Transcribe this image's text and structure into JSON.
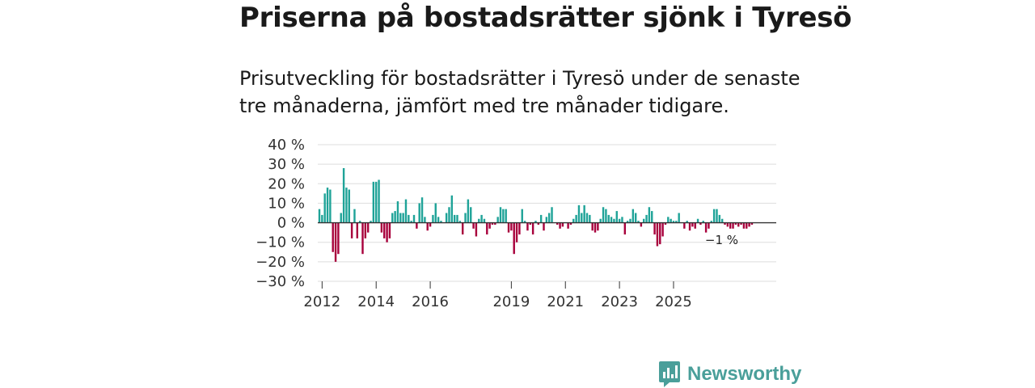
{
  "header": {
    "title": "Priserna på bostadsrätter sjönk i Tyresö",
    "subtitle": "Prisutveckling för bostadsrätter i Tyresö under de senaste tre månaderna, jämfört med tre månader tidigare."
  },
  "brand": {
    "name": "Newsworthy",
    "icon": "newsworthy-logo-icon",
    "color": "#4a9f9a"
  },
  "chart_data": {
    "type": "bar",
    "title": "Priserna på bostadsrätter sjönk i Tyresö",
    "xlabel": "",
    "ylabel": "",
    "ylim": [
      -30,
      40
    ],
    "yticks": [
      40,
      30,
      20,
      10,
      0,
      -10,
      -20,
      -30
    ],
    "ytick_labels": [
      "40 %",
      "30 %",
      "20 %",
      "10 %",
      "0 %",
      "−10 %",
      "−20 %",
      "−30 %"
    ],
    "x_start_month": "2011-12",
    "xlim_months": [
      0,
      166
    ],
    "xticks": [
      {
        "label": "2012",
        "month_index": 1
      },
      {
        "label": "2014",
        "month_index": 21
      },
      {
        "label": "2016",
        "month_index": 41
      },
      {
        "label": "2019",
        "month_index": 71
      },
      {
        "label": "2021",
        "month_index": 91
      },
      {
        "label": "2023",
        "month_index": 111
      },
      {
        "label": "2025",
        "month_index": 131
      }
    ],
    "colors": {
      "positive": "#1fa398",
      "negative": "#a8003c",
      "grid": "#dddddd",
      "zero": "#333333"
    },
    "grid": true,
    "legend": "none",
    "annotations": [
      {
        "text": "−1 %",
        "month_index": 147,
        "value": -1
      }
    ],
    "values": [
      7,
      4,
      15,
      18,
      17,
      -15,
      -20,
      -16,
      5,
      28,
      18,
      17,
      -8,
      7,
      -8,
      1,
      -16,
      -8,
      -5,
      1,
      21,
      21,
      22,
      -5,
      -8,
      -10,
      -8,
      5,
      6,
      11,
      5,
      5,
      12,
      4,
      1,
      4,
      -3,
      10,
      13,
      3,
      -4,
      -2,
      4,
      10,
      3,
      1,
      0,
      5,
      8,
      14,
      4,
      4,
      1,
      -6,
      5,
      12,
      8,
      -3,
      -7,
      2,
      4,
      2,
      -6,
      -3,
      -1,
      -1,
      3,
      8,
      7,
      7,
      -5,
      -4,
      -16,
      -10,
      -6,
      7,
      1,
      -4,
      -1,
      -6,
      1,
      -1,
      4,
      -4,
      3,
      5,
      8,
      0,
      -1,
      -3,
      -2,
      0,
      -3,
      -1,
      2,
      4,
      9,
      5,
      9,
      5,
      4,
      -4,
      -5,
      -4,
      2,
      8,
      7,
      4,
      3,
      2,
      6,
      2,
      3,
      -6,
      1,
      2,
      7,
      5,
      1,
      -2,
      2,
      4,
      8,
      6,
      -6,
      -12,
      -11,
      -7,
      -1,
      3,
      2,
      1,
      1,
      5,
      0,
      -3,
      1,
      -4,
      -2,
      -3,
      2,
      -1,
      1,
      -5,
      -3,
      1,
      7,
      7,
      4,
      2,
      -1,
      -2,
      -3,
      -3,
      -1,
      -2,
      -1,
      -3,
      -3,
      -2,
      -1
    ]
  }
}
